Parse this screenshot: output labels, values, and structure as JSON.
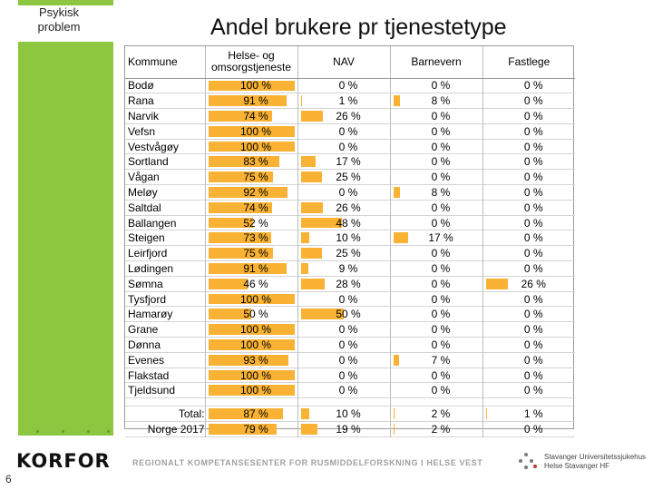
{
  "sidebar": {
    "label_line1": "Psykisk",
    "label_line2": "problem",
    "page_number": "6"
  },
  "title": "Andel brukere pr tjenestetype",
  "table": {
    "headers": {
      "kommune": "Kommune",
      "helse_line1": "Helse- og",
      "helse_line2": "omsorgstjeneste",
      "nav": "NAV",
      "barnevern": "Barnevern",
      "fastlege": "Fastlege"
    },
    "bar_color": "#f9b233",
    "rows": [
      {
        "name": "Bodø",
        "helse": "100 %",
        "helse_v": 100,
        "nav": "0 %",
        "nav_v": 0,
        "barnevern": "0 %",
        "barnevern_v": 0,
        "fastlege": "0 %",
        "fastlege_v": 0
      },
      {
        "name": "Rana",
        "helse": "91 %",
        "helse_v": 91,
        "nav": "1 %",
        "nav_v": 1,
        "barnevern": "8 %",
        "barnevern_v": 8,
        "fastlege": "0 %",
        "fastlege_v": 0
      },
      {
        "name": "Narvik",
        "helse": "74 %",
        "helse_v": 74,
        "nav": "26 %",
        "nav_v": 26,
        "barnevern": "0 %",
        "barnevern_v": 0,
        "fastlege": "0 %",
        "fastlege_v": 0
      },
      {
        "name": "Vefsn",
        "helse": "100 %",
        "helse_v": 100,
        "nav": "0 %",
        "nav_v": 0,
        "barnevern": "0 %",
        "barnevern_v": 0,
        "fastlege": "0 %",
        "fastlege_v": 0
      },
      {
        "name": "Vestvågøy",
        "helse": "100 %",
        "helse_v": 100,
        "nav": "0 %",
        "nav_v": 0,
        "barnevern": "0 %",
        "barnevern_v": 0,
        "fastlege": "0 %",
        "fastlege_v": 0
      },
      {
        "name": "Sortland",
        "helse": "83 %",
        "helse_v": 83,
        "nav": "17 %",
        "nav_v": 17,
        "barnevern": "0 %",
        "barnevern_v": 0,
        "fastlege": "0 %",
        "fastlege_v": 0
      },
      {
        "name": "Vågan",
        "helse": "75 %",
        "helse_v": 75,
        "nav": "25 %",
        "nav_v": 25,
        "barnevern": "0 %",
        "barnevern_v": 0,
        "fastlege": "0 %",
        "fastlege_v": 0
      },
      {
        "name": "Meløy",
        "helse": "92 %",
        "helse_v": 92,
        "nav": "0 %",
        "nav_v": 0,
        "barnevern": "8 %",
        "barnevern_v": 8,
        "fastlege": "0 %",
        "fastlege_v": 0
      },
      {
        "name": "Saltdal",
        "helse": "74 %",
        "helse_v": 74,
        "nav": "26 %",
        "nav_v": 26,
        "barnevern": "0 %",
        "barnevern_v": 0,
        "fastlege": "0 %",
        "fastlege_v": 0
      },
      {
        "name": "Ballangen",
        "helse": "52 %",
        "helse_v": 52,
        "nav": "48 %",
        "nav_v": 48,
        "barnevern": "0 %",
        "barnevern_v": 0,
        "fastlege": "0 %",
        "fastlege_v": 0
      },
      {
        "name": "Steigen",
        "helse": "73 %",
        "helse_v": 73,
        "nav": "10 %",
        "nav_v": 10,
        "barnevern": "17 %",
        "barnevern_v": 17,
        "fastlege": "0 %",
        "fastlege_v": 0
      },
      {
        "name": "Leirfjord",
        "helse": "75 %",
        "helse_v": 75,
        "nav": "25 %",
        "nav_v": 25,
        "barnevern": "0 %",
        "barnevern_v": 0,
        "fastlege": "0 %",
        "fastlege_v": 0
      },
      {
        "name": "Lødingen",
        "helse": "91 %",
        "helse_v": 91,
        "nav": "9 %",
        "nav_v": 9,
        "barnevern": "0 %",
        "barnevern_v": 0,
        "fastlege": "0 %",
        "fastlege_v": 0
      },
      {
        "name": "Sømna",
        "helse": "46 %",
        "helse_v": 46,
        "nav": "28 %",
        "nav_v": 28,
        "barnevern": "0 %",
        "barnevern_v": 0,
        "fastlege": "26 %",
        "fastlege_v": 26
      },
      {
        "name": "Tysfjord",
        "helse": "100 %",
        "helse_v": 100,
        "nav": "0 %",
        "nav_v": 0,
        "barnevern": "0 %",
        "barnevern_v": 0,
        "fastlege": "0 %",
        "fastlege_v": 0
      },
      {
        "name": "Hamarøy",
        "helse": "50 %",
        "helse_v": 50,
        "nav": "50 %",
        "nav_v": 50,
        "barnevern": "0 %",
        "barnevern_v": 0,
        "fastlege": "0 %",
        "fastlege_v": 0
      },
      {
        "name": "Grane",
        "helse": "100 %",
        "helse_v": 100,
        "nav": "0 %",
        "nav_v": 0,
        "barnevern": "0 %",
        "barnevern_v": 0,
        "fastlege": "0 %",
        "fastlege_v": 0
      },
      {
        "name": "Dønna",
        "helse": "100 %",
        "helse_v": 100,
        "nav": "0 %",
        "nav_v": 0,
        "barnevern": "0 %",
        "barnevern_v": 0,
        "fastlege": "0 %",
        "fastlege_v": 0
      },
      {
        "name": "Evenes",
        "helse": "93 %",
        "helse_v": 93,
        "nav": "0 %",
        "nav_v": 0,
        "barnevern": "7 %",
        "barnevern_v": 7,
        "fastlege": "0 %",
        "fastlege_v": 0
      },
      {
        "name": "Flakstad",
        "helse": "100 %",
        "helse_v": 100,
        "nav": "0 %",
        "nav_v": 0,
        "barnevern": "0 %",
        "barnevern_v": 0,
        "fastlege": "0 %",
        "fastlege_v": 0
      },
      {
        "name": "Tjeldsund",
        "helse": "100 %",
        "helse_v": 100,
        "nav": "0 %",
        "nav_v": 0,
        "barnevern": "0 %",
        "barnevern_v": 0,
        "fastlege": "0 %",
        "fastlege_v": 0
      }
    ],
    "totals": [
      {
        "name": "Total:",
        "helse": "87 %",
        "helse_v": 87,
        "nav": "10 %",
        "nav_v": 10,
        "barnevern": "2 %",
        "barnevern_v": 2,
        "fastlege": "1 %",
        "fastlege_v": 1
      },
      {
        "name": "Norge 2017",
        "helse": "79 %",
        "helse_v": 79,
        "nav": "19 %",
        "nav_v": 19,
        "barnevern": "2 %",
        "barnevern_v": 2,
        "fastlege": "0 %",
        "fastlege_v": 0
      }
    ]
  },
  "footer": {
    "logo_text": "KORFOR",
    "center_text": "REGIONALT KOMPETANSESENTER FOR RUSMIDDELFORSKNING I HELSE VEST",
    "hospital_line1": "Stavanger Universitetssjukehus",
    "hospital_line2": "Helse Stavanger HF"
  }
}
